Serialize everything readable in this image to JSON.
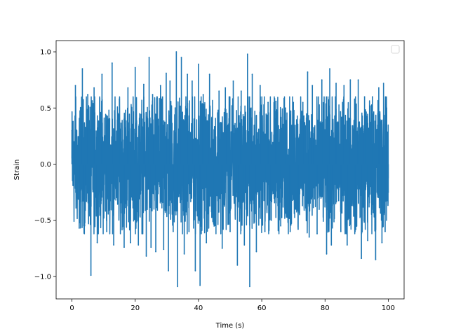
{
  "chart_data": {
    "type": "line",
    "title": "",
    "xlabel": "Time (s)",
    "ylabel": "Strain",
    "xlim": [
      -5,
      105
    ],
    "ylim": [
      -1.2,
      1.1
    ],
    "x_ticks": [
      0,
      20,
      40,
      60,
      80,
      100
    ],
    "x_tick_labels": [
      "0",
      "20",
      "40",
      "60",
      "80",
      "100"
    ],
    "y_ticks": [
      -1.0,
      -0.5,
      0.0,
      0.5,
      1.0
    ],
    "y_tick_labels": [
      "−1.0",
      "−0.5",
      "0.0",
      "0.5",
      "1.0"
    ],
    "grid": false,
    "legend": {
      "placement": "upper-right",
      "entries": []
    },
    "series": [
      {
        "color": "#1f77b4",
        "x_start": 0,
        "x_end": 100,
        "points": [
          [
            0,
            0.3
          ],
          [
            1.1,
            0.7
          ],
          [
            2.3,
            -0.57
          ],
          [
            3.3,
            0.85
          ],
          [
            4.0,
            -0.55
          ],
          [
            5.0,
            0.62
          ],
          [
            6.0,
            -0.99
          ],
          [
            7.0,
            0.68
          ],
          [
            8.0,
            -0.7
          ],
          [
            9.5,
            0.8
          ],
          [
            11.0,
            -0.6
          ],
          [
            12.7,
            0.9
          ],
          [
            13.2,
            -0.72
          ],
          [
            15.0,
            0.58
          ],
          [
            16.5,
            -0.74
          ],
          [
            17.7,
            0.68
          ],
          [
            18.5,
            -0.7
          ],
          [
            20.0,
            0.86
          ],
          [
            21.0,
            -0.72
          ],
          [
            22.7,
            0.71
          ],
          [
            23.5,
            -0.82
          ],
          [
            24.4,
            0.95
          ],
          [
            25.0,
            -0.74
          ],
          [
            25.5,
            0.62
          ],
          [
            26.5,
            -0.78
          ],
          [
            28.0,
            0.7
          ],
          [
            29.0,
            -0.76
          ],
          [
            29.8,
            0.81
          ],
          [
            30.5,
            -0.95
          ],
          [
            31.0,
            0.74
          ],
          [
            32.0,
            -0.6
          ],
          [
            33.0,
            1.0
          ],
          [
            33.4,
            -1.09
          ],
          [
            34.6,
            0.95
          ],
          [
            35.5,
            -0.8
          ],
          [
            36.5,
            0.8
          ],
          [
            37.0,
            -0.6
          ],
          [
            38.0,
            0.74
          ],
          [
            39.0,
            -0.95
          ],
          [
            40.0,
            0.89
          ],
          [
            40.5,
            -1.08
          ],
          [
            41.5,
            0.62
          ],
          [
            42.5,
            -0.7
          ],
          [
            43.5,
            0.8
          ],
          [
            45.0,
            -0.52
          ],
          [
            46.5,
            0.65
          ],
          [
            47.5,
            -0.75
          ],
          [
            48.5,
            0.68
          ],
          [
            50.0,
            -0.6
          ],
          [
            51.0,
            0.74
          ],
          [
            52.3,
            -0.9
          ],
          [
            53.5,
            0.65
          ],
          [
            54.5,
            -0.72
          ],
          [
            55.5,
            0.98
          ],
          [
            56.2,
            -1.09
          ],
          [
            57.0,
            0.8
          ],
          [
            58.3,
            -0.78
          ],
          [
            59.5,
            0.7
          ],
          [
            61.0,
            -0.6
          ],
          [
            62.0,
            0.55
          ],
          [
            63.0,
            -0.5
          ],
          [
            64.5,
            0.56
          ],
          [
            66.0,
            -0.55
          ],
          [
            67.5,
            0.5
          ],
          [
            69.0,
            -0.6
          ],
          [
            70.0,
            0.55
          ],
          [
            71.5,
            -0.58
          ],
          [
            73.0,
            0.55
          ],
          [
            74.5,
            0.82
          ],
          [
            75.0,
            -0.65
          ],
          [
            76.0,
            0.7
          ],
          [
            77.5,
            -0.62
          ],
          [
            79.0,
            0.75
          ],
          [
            80.5,
            -0.8
          ],
          [
            81.5,
            0.85
          ],
          [
            82.0,
            -0.72
          ],
          [
            83.5,
            0.72
          ],
          [
            85.0,
            -0.6
          ],
          [
            86.0,
            0.7
          ],
          [
            87.0,
            -0.72
          ],
          [
            88.0,
            0.75
          ],
          [
            89.5,
            -0.6
          ],
          [
            90.5,
            0.75
          ],
          [
            91.5,
            -0.84
          ],
          [
            92.5,
            0.6
          ],
          [
            93.5,
            -0.68
          ],
          [
            95.0,
            0.6
          ],
          [
            96.0,
            -0.85
          ],
          [
            97.0,
            0.68
          ],
          [
            98.0,
            -0.7
          ],
          [
            98.5,
            0.72
          ],
          [
            99.0,
            -0.6
          ],
          [
            99.5,
            0.5
          ],
          [
            100,
            -0.25
          ]
        ]
      }
    ]
  }
}
